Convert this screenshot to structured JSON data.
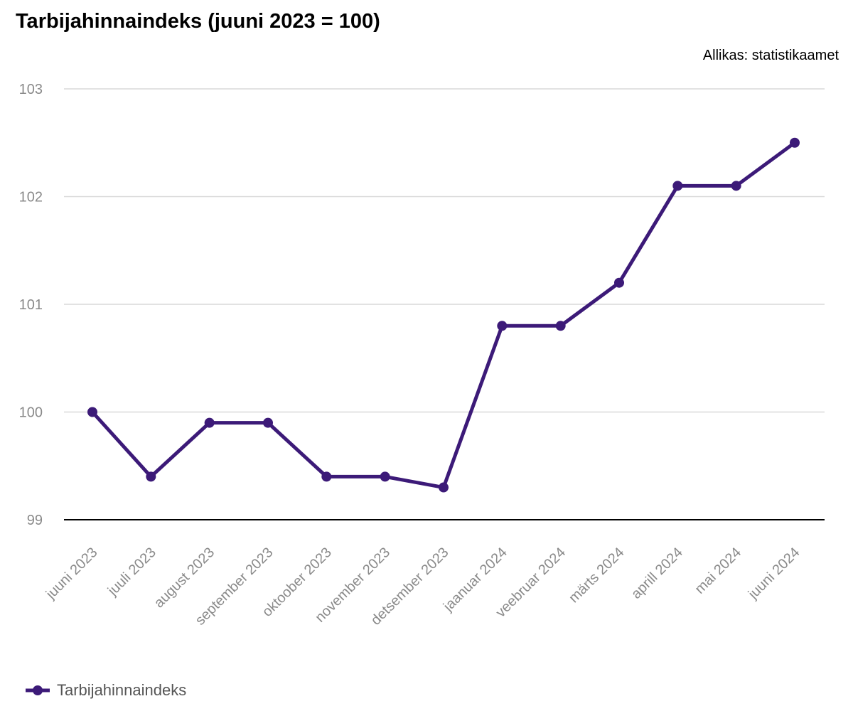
{
  "chart_data": {
    "type": "line",
    "title": "Tarbijahinnaindeks (juuni 2023 = 100)",
    "source": "Allikas: statistikaamet",
    "xlabel": "",
    "ylabel": "",
    "ylim": [
      99,
      103
    ],
    "yticks": [
      "99",
      "100",
      "101",
      "102",
      "103"
    ],
    "grid": true,
    "legend_position": "bottom-left",
    "categories": [
      "juuni 2023",
      "juuli 2023",
      "august 2023",
      "september 2023",
      "oktoober 2023",
      "november 2023",
      "detsember 2023",
      "jaanuar 2024",
      "veebruar 2024",
      "märts 2024",
      "aprill 2024",
      "mai 2024",
      "juuni 2024"
    ],
    "series": [
      {
        "name": "Tarbijahinnaindeks",
        "color": "#3c1a78",
        "values": [
          100.0,
          99.4,
          99.9,
          99.9,
          99.4,
          99.4,
          99.3,
          100.8,
          100.8,
          101.2,
          102.1,
          102.1,
          102.5
        ]
      }
    ]
  }
}
